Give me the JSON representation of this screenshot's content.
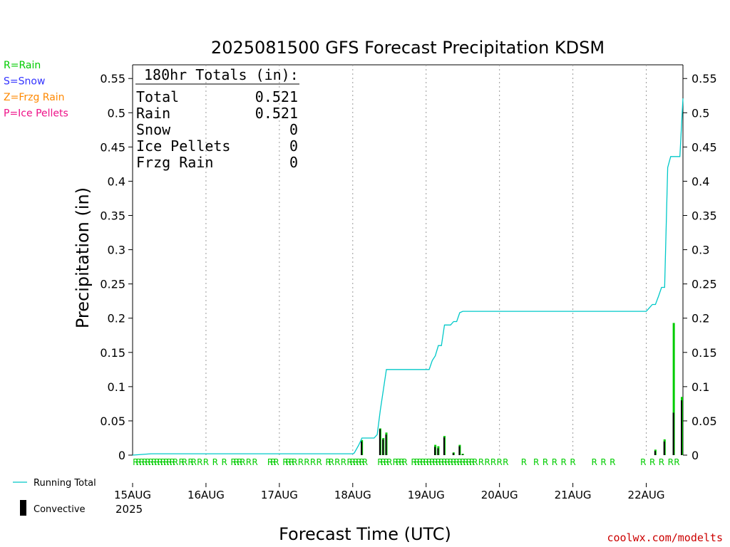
{
  "chart_data": {
    "type": "bar",
    "title": "2025081500 GFS Forecast Precipitation KDSM",
    "xlabel": "Forecast Time (UTC)",
    "ylabel": "Precipitation (in)",
    "ylim": [
      0,
      0.57
    ],
    "yticks": [
      0,
      0.05,
      0.1,
      0.15,
      0.2,
      0.25,
      0.3,
      0.35,
      0.4,
      0.45,
      0.5,
      0.55
    ],
    "ytick_labels": [
      "0",
      "0.05",
      "0.1",
      "0.15",
      "0.2",
      "0.25",
      "0.3",
      "0.35",
      "0.4",
      "0.45",
      "0.5",
      "0.55"
    ],
    "xlim_hours": [
      0,
      180
    ],
    "xticks": [
      {
        "hour": 0,
        "label": "15AUG"
      },
      {
        "hour": 24,
        "label": "16AUG"
      },
      {
        "hour": 48,
        "label": "17AUG"
      },
      {
        "hour": 72,
        "label": "18AUG"
      },
      {
        "hour": 96,
        "label": "19AUG"
      },
      {
        "hour": 120,
        "label": "20AUG"
      },
      {
        "hour": 144,
        "label": "21AUG"
      },
      {
        "hour": 168,
        "label": "22AUG"
      }
    ],
    "year_label": "2025",
    "grid": "vertical dotted at day boundaries",
    "precip_bars": [
      {
        "hour": 75,
        "total": 0.022,
        "convective": 0.02
      },
      {
        "hour": 81,
        "total": 0.039,
        "convective": 0.038
      },
      {
        "hour": 82,
        "total": 0.025,
        "convective": 0.023
      },
      {
        "hour": 83,
        "total": 0.033,
        "convective": 0.03
      },
      {
        "hour": 99,
        "total": 0.015,
        "convective": 0.012
      },
      {
        "hour": 100,
        "total": 0.013,
        "convective": 0.01
      },
      {
        "hour": 102,
        "total": 0.028,
        "convective": 0.026
      },
      {
        "hour": 105,
        "total": 0.004,
        "convective": 0.003
      },
      {
        "hour": 107,
        "total": 0.015,
        "convective": 0.013
      },
      {
        "hour": 108,
        "total": 0.002,
        "convective": 0.001
      },
      {
        "hour": 171,
        "total": 0.008,
        "convective": 0.006
      },
      {
        "hour": 174,
        "total": 0.023,
        "convective": 0.02
      },
      {
        "hour": 177,
        "total": 0.193,
        "convective": 0.062
      },
      {
        "hour": 180,
        "total": 0.085,
        "convective": 0.08
      }
    ],
    "running_total": {
      "name": "Running Total",
      "x_hours": [
        0,
        6,
        72,
        72.5,
        74,
        75,
        75.5,
        79,
        80,
        81,
        82,
        83,
        97,
        98,
        99,
        100,
        101,
        102,
        104,
        105,
        106,
        107,
        108,
        168,
        169,
        170,
        171,
        172,
        173,
        174,
        175,
        176,
        177,
        178,
        179,
        180
      ],
      "y": [
        0,
        0.002,
        0.002,
        0.003,
        0.015,
        0.025,
        0.025,
        0.025,
        0.03,
        0.065,
        0.095,
        0.125,
        0.125,
        0.138,
        0.145,
        0.16,
        0.16,
        0.19,
        0.19,
        0.195,
        0.195,
        0.208,
        0.21,
        0.21,
        0.215,
        0.22,
        0.22,
        0.232,
        0.245,
        0.245,
        0.42,
        0.436,
        0.436,
        0.436,
        0.436,
        0.521
      ]
    },
    "rain_marker": "R",
    "rain_marker_hours": [
      1,
      2,
      3,
      4,
      5,
      6,
      7,
      8,
      9,
      10,
      11,
      12,
      13,
      14,
      16,
      17,
      19,
      20,
      22,
      24,
      27,
      30,
      33,
      34,
      35,
      36,
      38,
      40,
      45,
      46,
      47,
      50,
      51,
      52,
      53,
      55,
      57,
      59,
      61,
      64,
      65,
      67,
      69,
      71,
      72,
      73,
      74,
      75,
      76,
      81,
      82,
      83,
      84,
      86,
      87,
      88,
      89,
      92,
      93,
      94,
      95,
      96,
      97,
      98,
      99,
      100,
      101,
      102,
      103,
      104,
      105,
      106,
      107,
      108,
      109,
      110,
      111,
      112,
      114,
      116,
      118,
      120,
      122,
      128,
      132,
      135,
      138,
      141,
      144,
      151,
      154,
      157,
      167,
      170,
      173,
      176,
      178
    ],
    "totals_box": {
      "header": "180hr Totals (in):",
      "rows": [
        {
          "label": "Total",
          "value": "0.521"
        },
        {
          "label": "Rain",
          "value": "0.521"
        },
        {
          "label": "Snow",
          "value": "0"
        },
        {
          "label": "Ice Pellets",
          "value": "0"
        },
        {
          "label": "Frzg Rain",
          "value": "0"
        }
      ]
    },
    "type_legend": [
      {
        "text": "R=Rain",
        "color": "#00cc00"
      },
      {
        "text": "S=Snow",
        "color": "#3333ff"
      },
      {
        "text": "Z=Frzg Rain",
        "color": "#ff8800"
      },
      {
        "text": "P=Ice Pellets",
        "color": "#ee1188"
      }
    ],
    "series_legend": [
      {
        "text": "Running Total",
        "color": "#00c8c8"
      },
      {
        "text": "Convective",
        "color": "#000000"
      }
    ],
    "colors": {
      "running_total": "#00c8c8",
      "rain_bar": "#00cc00",
      "convective_bar": "#000000",
      "credit": "#cc0000"
    },
    "credit": "coolwx.com/modelts"
  }
}
